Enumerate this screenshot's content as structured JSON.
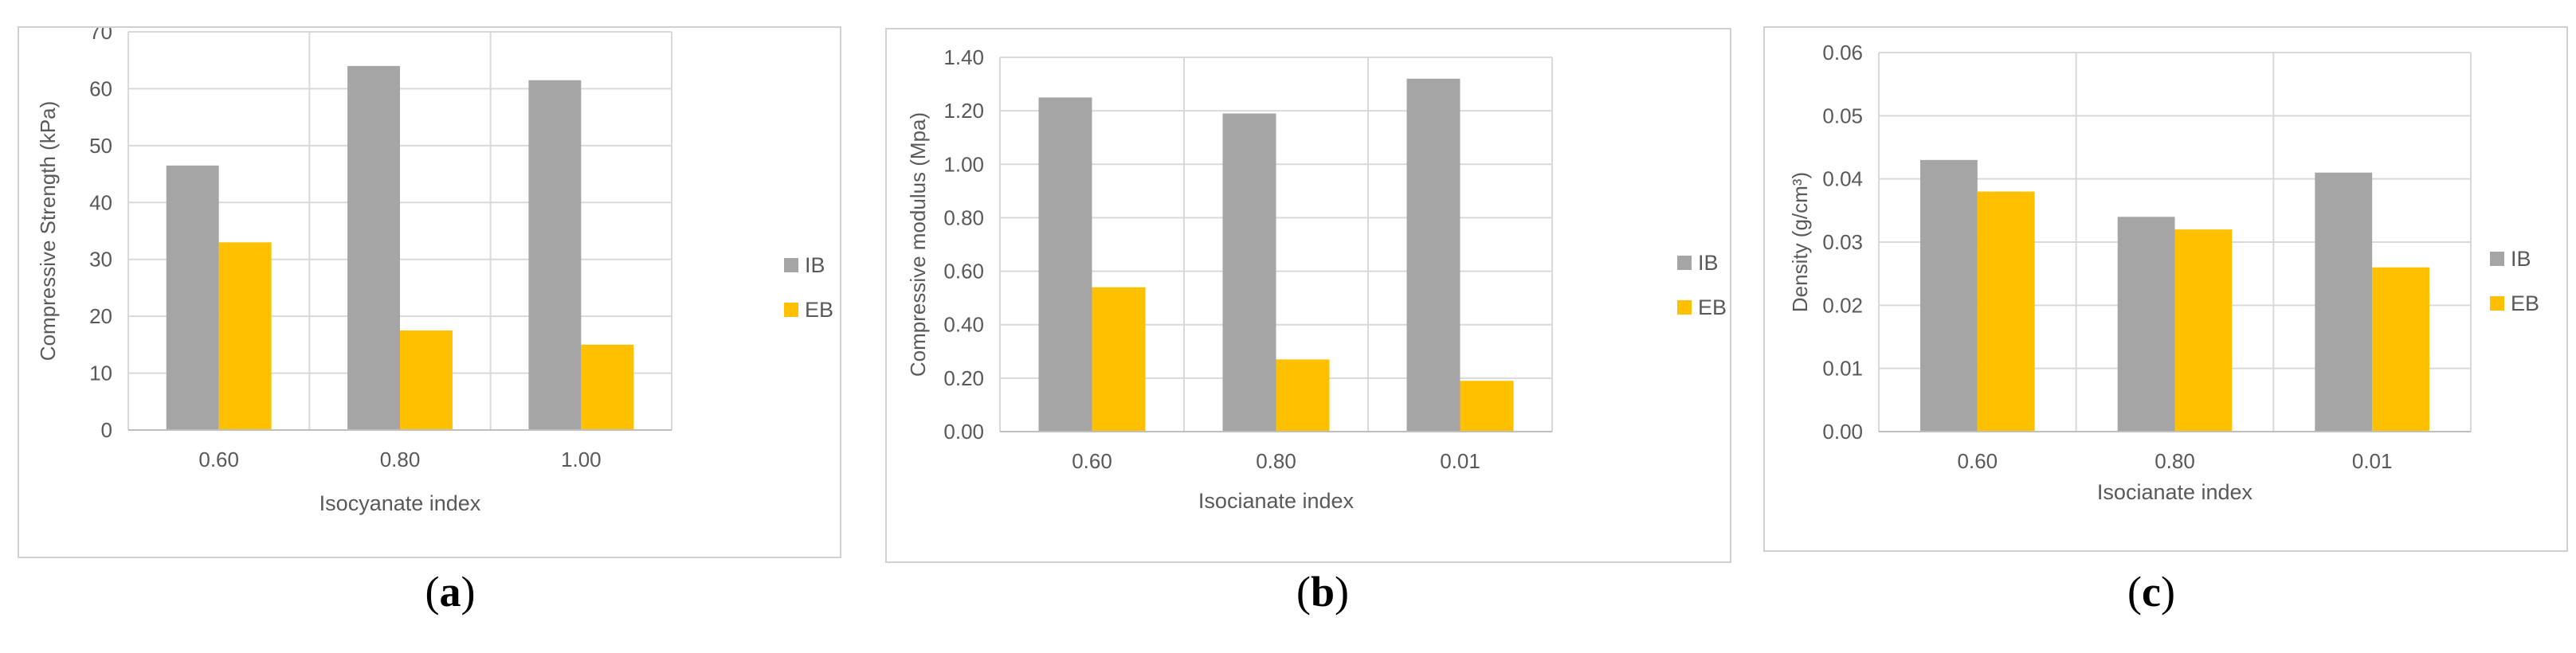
{
  "chart_data": [
    {
      "type": "bar",
      "panel_label": "a",
      "categories": [
        "0.60",
        "0.80",
        "1.00"
      ],
      "series": [
        {
          "name": "IB",
          "values": [
            46.5,
            64.0,
            61.5
          ],
          "color": "#a5a5a5"
        },
        {
          "name": "EB",
          "values": [
            33.0,
            17.5,
            15.0
          ],
          "color": "#ffc000"
        }
      ],
      "xlabel": "Isocyanate index",
      "ylabel": "Compressive Strength (kPa)",
      "ylim": [
        0,
        70
      ],
      "yticks": [
        "0",
        "10",
        "20",
        "30",
        "40",
        "50",
        "60",
        "70"
      ],
      "grid": true,
      "legend_position": "right"
    },
    {
      "type": "bar",
      "panel_label": "b",
      "categories": [
        "0.60",
        "0.80",
        "0.01"
      ],
      "series": [
        {
          "name": "IB",
          "values": [
            1.25,
            1.19,
            1.32
          ],
          "color": "#a5a5a5"
        },
        {
          "name": "EB",
          "values": [
            0.54,
            0.27,
            0.19
          ],
          "color": "#ffc000"
        }
      ],
      "xlabel": "Isocianate index",
      "ylabel": "Compressive modulus (Mpa)",
      "ylim": [
        0,
        1.4
      ],
      "yticks": [
        "0.00",
        "0.20",
        "0.40",
        "0.60",
        "0.80",
        "1.00",
        "1.20",
        "1.40"
      ],
      "grid": true,
      "legend_position": "right"
    },
    {
      "type": "bar",
      "panel_label": "c",
      "categories": [
        "0.60",
        "0.80",
        "0.01"
      ],
      "series": [
        {
          "name": "IB",
          "values": [
            0.043,
            0.034,
            0.041
          ],
          "color": "#a5a5a5"
        },
        {
          "name": "EB",
          "values": [
            0.038,
            0.032,
            0.026
          ],
          "color": "#ffc000"
        }
      ],
      "xlabel": "Isocianate index",
      "ylabel": "Density (g/cm³)",
      "ylim": [
        0,
        0.06
      ],
      "yticks": [
        "0.00",
        "0.01",
        "0.02",
        "0.03",
        "0.04",
        "0.05",
        "0.06"
      ],
      "grid": true,
      "legend_position": "right"
    }
  ],
  "captions": {
    "a": {
      "open": "(",
      "letter": "a",
      "close": ")"
    },
    "b": {
      "open": "(",
      "letter": "b",
      "close": ")"
    },
    "c": {
      "open": "(",
      "letter": "c",
      "close": ")"
    }
  }
}
